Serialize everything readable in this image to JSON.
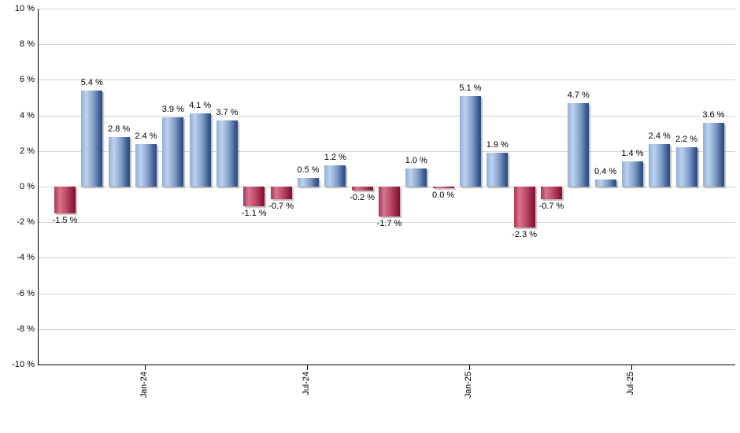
{
  "chart_data": {
    "type": "bar",
    "title": "",
    "xlabel": "",
    "ylabel": "",
    "values": [
      -1.5,
      5.4,
      2.8,
      2.4,
      3.9,
      4.1,
      3.7,
      -1.1,
      -0.7,
      0.5,
      1.2,
      -0.2,
      -1.7,
      1.0,
      0.0,
      5.1,
      1.9,
      -2.3,
      -0.7,
      4.7,
      0.4,
      1.4,
      2.4,
      2.2,
      3.6
    ],
    "bar_labels": [
      "-1.5 %",
      "5.4 %",
      "2.8 %",
      "2.4 %",
      "3.9 %",
      "4.1 %",
      "3.7 %",
      "-1.1 %",
      "-0.7 %",
      "0.5 %",
      "1.2 %",
      "-0.2 %",
      "-1.7 %",
      "1.0 %",
      "0.0 %",
      "5.1 %",
      "1.9 %",
      "-2.3 %",
      "-0.7 %",
      "4.7 %",
      "0.4 %",
      "1.4 %",
      "2.4 %",
      "2.2 %",
      "3.6 %"
    ],
    "x_ticks": [
      {
        "index": 3,
        "label": "Jan-24"
      },
      {
        "index": 9,
        "label": "Jul-24"
      },
      {
        "index": 15,
        "label": "Jan-25"
      },
      {
        "index": 21,
        "label": "Jul-25"
      }
    ],
    "y_ticks": [
      "10 %",
      "8 %",
      "6 %",
      "4 %",
      "2 %",
      "0 %",
      "-2 %",
      "-4 %",
      "-6 %",
      "-8 %",
      "-10 %"
    ],
    "ylim": [
      -10,
      10
    ],
    "y_step": 2,
    "grid": true,
    "legend": "none",
    "colors": {
      "positive_bar_light": "#bdd2ee",
      "positive_bar_dark": "#2d4a77",
      "negative_bar_light": "#d5768e",
      "negative_bar_dark": "#7a1530",
      "gridline": "#d4d4d4",
      "axis": "#000000",
      "label_text": "#000000",
      "background": "#ffffff"
    }
  }
}
